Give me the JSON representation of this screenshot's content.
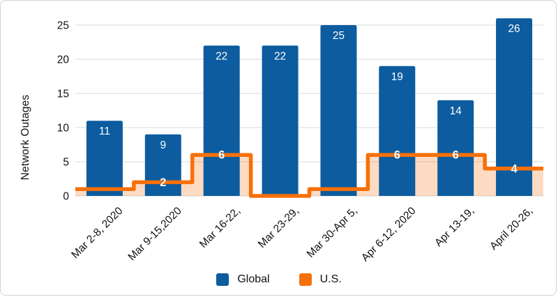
{
  "chart_data": {
    "type": "bar",
    "subtype": "bar-with-step-line-area-combo",
    "title": "",
    "xlabel": "",
    "ylabel": "Network Outages",
    "categories": [
      "Mar 2-8, 2020",
      "Mar 9-15,2020",
      "Mar 16-22,",
      "Mar 23-29,",
      "Mar 30-Apr 5,",
      "Apr 6-12, 2020",
      "Apr 13-19,",
      "April 20-26,"
    ],
    "series": [
      {
        "name": "Global",
        "type": "bar",
        "color": "#0c5c9f",
        "values": [
          11,
          9,
          22,
          22,
          25,
          19,
          14,
          26
        ],
        "label_color": "#ffffff",
        "labels_visible": [
          true,
          true,
          true,
          true,
          true,
          true,
          true,
          true
        ]
      },
      {
        "name": "U.S.",
        "type": "step-area",
        "color": "#f6700a",
        "area_opacity": 0.25,
        "values": [
          1,
          2,
          6,
          0,
          1,
          6,
          6,
          4
        ],
        "label_color": "#ffffff",
        "labels_visible": [
          false,
          true,
          true,
          false,
          false,
          true,
          true,
          true
        ]
      }
    ],
    "yticks": [
      0,
      5,
      10,
      15,
      20,
      25
    ],
    "ylim": [
      0,
      25
    ],
    "grid": "horizontal",
    "grid_color": "#d9d9d9",
    "legend_position": "bottom",
    "tick_label_color": "#111111"
  },
  "legend": {
    "global_label": "Global",
    "us_label": "U.S."
  }
}
